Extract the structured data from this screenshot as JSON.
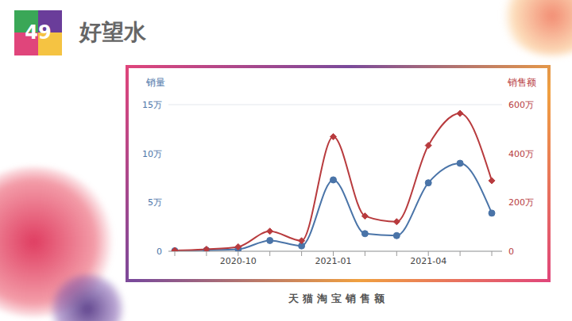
{
  "header": {
    "number": "49",
    "title": "好望水"
  },
  "caption": "天猫淘宝销售额",
  "chart_data": {
    "type": "line",
    "categories": [
      null,
      null,
      "2020-10",
      null,
      null,
      "2021-01",
      null,
      null,
      "2021-04",
      null,
      null
    ],
    "series": [
      {
        "name": "销量",
        "color": "#4a74a8",
        "marker": "circle",
        "values": [
          0.05,
          0.1,
          0.2,
          1.1,
          0.55,
          7.3,
          1.8,
          1.6,
          7.0,
          9.0,
          3.9
        ]
      },
      {
        "name": "销售额",
        "color": "#b83b3e",
        "marker": "diamond",
        "axis": "y2",
        "values": [
          3,
          8,
          18,
          82,
          43,
          469,
          144,
          121,
          433,
          564,
          289
        ]
      }
    ],
    "ylim": [
      0,
      15
    ],
    "yticks": [
      0,
      {
        "value": 5,
        "label": "5万"
      },
      {
        "value": 10,
        "label": "10万"
      },
      {
        "value": 15,
        "label": "15万"
      }
    ],
    "y2lim": [
      0,
      600
    ],
    "y2ticks": [
      0,
      {
        "value": 200,
        "label": "200万"
      },
      {
        "value": 400,
        "label": "400万"
      },
      {
        "value": 600,
        "label": "600万"
      }
    ],
    "grid": true
  }
}
